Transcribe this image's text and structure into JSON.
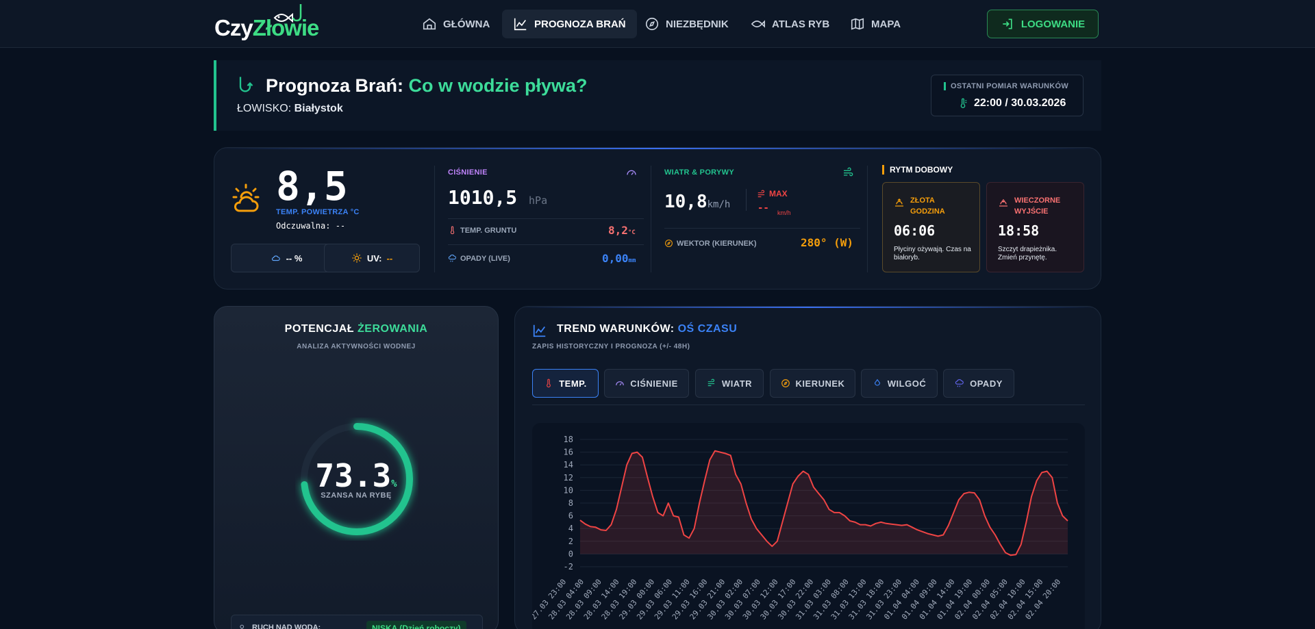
{
  "nav": {
    "logo_a": "Czy",
    "logo_b": "Złowie",
    "items": [
      {
        "label": "GŁÓWNA",
        "icon": "home-icon"
      },
      {
        "label": "PROGNOZA BRAŃ",
        "icon": "chart-line-icon"
      },
      {
        "label": "NIEZBĘDNIK",
        "icon": "compass-icon"
      },
      {
        "label": "ATLAS RYB",
        "icon": "fish-icon"
      },
      {
        "label": "MAPA",
        "icon": "map-icon"
      }
    ],
    "login": "LOGOWANIE",
    "colors": {
      "accent": "#3ddc84",
      "bg": "#0d1726"
    }
  },
  "header": {
    "title_a": "Prognoza Brań:",
    "title_b": "Co w wodzie pływa?",
    "spot_label": "ŁOWISKO:",
    "spot_name": "Białystok",
    "last_label": "OSTATNI POMIAR WARUNKÓW",
    "last_value": "22:00 / 30.03.2026"
  },
  "weather": {
    "temp": "8,5",
    "temp_label": "TEMP. POWIETRZA °C",
    "feels": "Odczuwalna: --",
    "humidity": "-- %",
    "uv_label": "UV:",
    "uv_value": "--",
    "pressure_label": "CIŚNIENIE",
    "pressure_value": "1010,5",
    "pressure_unit": "hPa",
    "ground_label": "TEMP. GRUNTU",
    "ground_value": "8,2",
    "ground_unit": "°C",
    "rain_label": "OPADY (LIVE)",
    "rain_value": "0,00",
    "rain_unit": "mm",
    "wind_label": "WIATR & PORYWY",
    "wind_value": "10,8",
    "wind_unit": "km/h",
    "gust_label": "MAX",
    "gust_value": "--",
    "gust_unit": "km/h",
    "vector_label": "WEKTOR (KIERUNEK)",
    "vector_value": "280° (W)",
    "rhythm_label": "RYTM DOBOWY",
    "gold_title": "ZŁOTA GODZINA",
    "gold_time": "06:06",
    "gold_desc": "Płyciny ożywają. Czas na białoryb.",
    "evening_title": "WIECZORNE WYJŚCIE",
    "evening_time": "18:58",
    "evening_desc": "Szczyt drapieżnika. Zmień przynętę."
  },
  "potential": {
    "title_a": "POTENCJAŁ",
    "title_b": "ŻEROWANIA",
    "subtitle": "ANALIZA AKTYWNOŚCI WODNEJ",
    "value": "73.3",
    "value_fraction": 0.733,
    "unit": "%",
    "caption": "SZANSA NA RYBĘ",
    "crowd_label": "RUCH NAD WODĄ:",
    "crowd_value": "NISKA (Dzień roboczy)"
  },
  "trend": {
    "title_a": "TREND WARUNKÓW:",
    "title_b": "OŚ CZASU",
    "subtitle": "ZAPIS HISTORYCZNY I PROGNOZA (+/- 48H)",
    "tabs": [
      {
        "label": "TEMP.",
        "icon": "thermometer-icon",
        "color": "#ef4444"
      },
      {
        "label": "CIŚNIENIE",
        "icon": "gauge-icon",
        "color": "#a78bfa"
      },
      {
        "label": "WIATR",
        "icon": "wind-icon",
        "color": "#22c38e"
      },
      {
        "label": "KIERUNEK",
        "icon": "compass-icon",
        "color": "#f59e0b"
      },
      {
        "label": "WILGOĆ",
        "icon": "droplet-icon",
        "color": "#3b82f6"
      },
      {
        "label": "OPADY",
        "icon": "cloud-rain-icon",
        "color": "#6366f1"
      }
    ]
  },
  "chart_data": {
    "type": "area",
    "ylim": [
      -2,
      18
    ],
    "yticks": [
      -2,
      0,
      2,
      4,
      6,
      8,
      10,
      12,
      14,
      16,
      18
    ],
    "xticklabels": [
      "27.03 23:00",
      "28.03 04:00",
      "28.03 09:00",
      "28.03 14:00",
      "28.03 19:00",
      "29.03 00:00",
      "29.03 06:00",
      "29.03 11:00",
      "29.03 16:00",
      "29.03 21:00",
      "30.03 02:00",
      "30.03 07:00",
      "30.03 12:00",
      "30.03 17:00",
      "30.03 22:00",
      "31.03 03:00",
      "31.03 08:00",
      "31.03 13:00",
      "31.03 18:00",
      "31.03 23:00",
      "01.04 04:00",
      "01.04 09:00",
      "01.04 14:00",
      "01.04 19:00",
      "02.04 00:00",
      "02.04 05:00",
      "02.04 10:00",
      "02.04 15:00",
      "02.04 20:00"
    ],
    "color": "#ef4444",
    "series": [
      {
        "values": [
          5.3,
          4.7,
          4.3,
          4.2,
          3.8,
          3.7,
          4.6,
          7,
          10.5,
          14,
          15.8,
          16,
          15.2,
          12,
          9,
          6.5,
          6,
          8,
          6,
          5.8,
          3,
          2.5,
          4,
          8,
          11.5,
          14.8,
          16.2,
          16,
          15.8,
          15.5,
          12.5,
          11,
          8,
          5.5,
          4,
          3,
          2,
          1.2,
          2,
          5,
          8,
          11,
          12.2,
          13,
          12.5,
          10.5,
          9.5,
          8.5,
          7,
          6.5,
          6.5,
          6,
          5.2,
          5,
          4.6,
          4.6,
          4.4,
          4.8,
          5,
          4.8,
          4.7,
          4.6,
          4.5,
          4.6,
          4.2,
          3.8,
          3.5,
          3.2,
          3,
          2.8,
          3,
          4.5,
          6.5,
          8.5,
          9.5,
          9.7,
          9.6,
          8.5,
          6,
          4.2,
          3,
          1.5,
          0.2,
          -0.2,
          -0.1,
          1.5,
          5,
          9,
          11.5,
          12.8,
          13,
          12,
          8,
          6,
          5.2
        ]
      }
    ]
  }
}
